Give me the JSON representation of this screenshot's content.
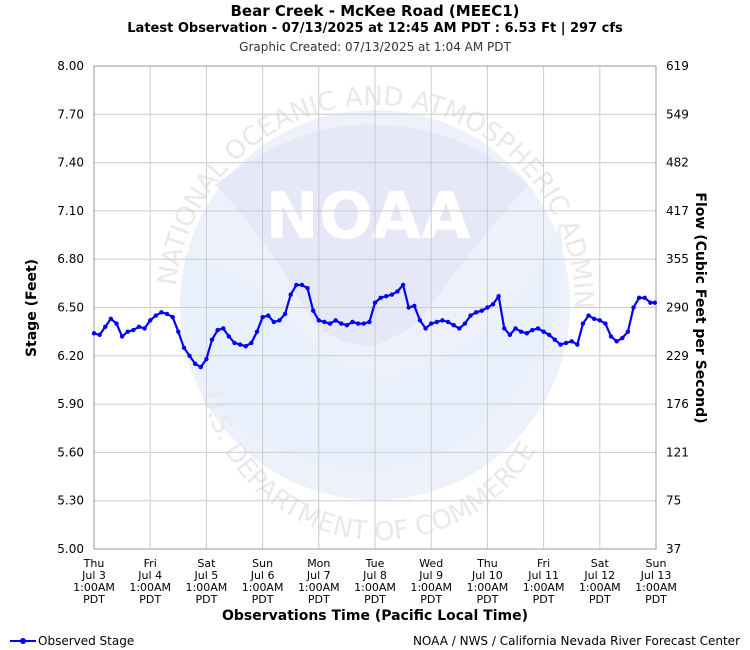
{
  "header": {
    "title": "Bear Creek - McKee Road (MEEC1)",
    "subtitle": "Latest Observation - 07/13/2025 at 12:45 AM PDT : 6.53 Ft | 297 cfs",
    "created": "Graphic Created: 07/13/2025 at 1:04 AM PDT"
  },
  "footer": {
    "legend_label": "Observed Stage",
    "credit": "NOAA / NWS / California Nevada River Forecast Center"
  },
  "watermark": {
    "logo_text": "NOAA",
    "seal_text": "NATIONAL OCEANIC AND ATMOSPHERIC ADMINISTRATION",
    "seal_text_bottom": "U.S. DEPARTMENT OF COMMERCE"
  },
  "colors": {
    "series": "#0000ff",
    "grid": "#cccccc",
    "watermark": "#e8ecf8"
  },
  "chart_data": {
    "type": "line",
    "xlabel": "Observations Time (Pacific Local Time)",
    "ylabel": "Stage (Feet)",
    "y2label": "Flow (Cubic Feet per Second)",
    "ylim": [
      5.0,
      8.0
    ],
    "yticks": [
      "8.00",
      "7.70",
      "7.40",
      "7.10",
      "6.80",
      "6.50",
      "6.20",
      "5.90",
      "5.60",
      "5.30",
      "5.00"
    ],
    "y2ticks": [
      "619",
      "549",
      "482",
      "417",
      "355",
      "290",
      "229",
      "176",
      "121",
      "75",
      "37"
    ],
    "xlim_days": [
      0,
      10
    ],
    "xticks": [
      {
        "day": "Thu",
        "date": "Jul 3",
        "time": "1:00AM",
        "tz": "PDT"
      },
      {
        "day": "Fri",
        "date": "Jul 4",
        "time": "1:00AM",
        "tz": "PDT"
      },
      {
        "day": "Sat",
        "date": "Jul 5",
        "time": "1:00AM",
        "tz": "PDT"
      },
      {
        "day": "Sun",
        "date": "Jul 6",
        "time": "1:00AM",
        "tz": "PDT"
      },
      {
        "day": "Mon",
        "date": "Jul 7",
        "time": "1:00AM",
        "tz": "PDT"
      },
      {
        "day": "Tue",
        "date": "Jul 8",
        "time": "1:00AM",
        "tz": "PDT"
      },
      {
        "day": "Wed",
        "date": "Jul 9",
        "time": "1:00AM",
        "tz": "PDT"
      },
      {
        "day": "Thu",
        "date": "Jul 10",
        "time": "1:00AM",
        "tz": "PDT"
      },
      {
        "day": "Fri",
        "date": "Jul 11",
        "time": "1:00AM",
        "tz": "PDT"
      },
      {
        "day": "Sat",
        "date": "Jul 12",
        "time": "1:00AM",
        "tz": "PDT"
      },
      {
        "day": "Sun",
        "date": "Jul 13",
        "time": "1:00AM",
        "tz": "PDT"
      }
    ],
    "grid": true,
    "legend": "bottom-left",
    "series": [
      {
        "name": "Observed Stage",
        "points": [
          [
            0.0,
            6.34
          ],
          [
            0.1,
            6.33
          ],
          [
            0.2,
            6.38
          ],
          [
            0.3,
            6.43
          ],
          [
            0.4,
            6.4
          ],
          [
            0.5,
            6.32
          ],
          [
            0.6,
            6.35
          ],
          [
            0.7,
            6.36
          ],
          [
            0.8,
            6.38
          ],
          [
            0.9,
            6.37
          ],
          [
            1.0,
            6.42
          ],
          [
            1.1,
            6.45
          ],
          [
            1.2,
            6.47
          ],
          [
            1.3,
            6.46
          ],
          [
            1.4,
            6.44
          ],
          [
            1.5,
            6.35
          ],
          [
            1.6,
            6.25
          ],
          [
            1.7,
            6.2
          ],
          [
            1.8,
            6.15
          ],
          [
            1.9,
            6.13
          ],
          [
            2.0,
            6.18
          ],
          [
            2.1,
            6.3
          ],
          [
            2.2,
            6.36
          ],
          [
            2.3,
            6.37
          ],
          [
            2.4,
            6.32
          ],
          [
            2.5,
            6.28
          ],
          [
            2.6,
            6.27
          ],
          [
            2.7,
            6.26
          ],
          [
            2.8,
            6.28
          ],
          [
            2.9,
            6.35
          ],
          [
            3.0,
            6.44
          ],
          [
            3.1,
            6.45
          ],
          [
            3.2,
            6.41
          ],
          [
            3.3,
            6.42
          ],
          [
            3.4,
            6.46
          ],
          [
            3.5,
            6.58
          ],
          [
            3.6,
            6.64
          ],
          [
            3.7,
            6.64
          ],
          [
            3.8,
            6.62
          ],
          [
            3.9,
            6.48
          ],
          [
            4.0,
            6.42
          ],
          [
            4.1,
            6.41
          ],
          [
            4.2,
            6.4
          ],
          [
            4.3,
            6.42
          ],
          [
            4.4,
            6.4
          ],
          [
            4.5,
            6.39
          ],
          [
            4.6,
            6.41
          ],
          [
            4.7,
            6.4
          ],
          [
            4.8,
            6.4
          ],
          [
            4.9,
            6.41
          ],
          [
            5.0,
            6.53
          ],
          [
            5.1,
            6.56
          ],
          [
            5.2,
            6.57
          ],
          [
            5.3,
            6.58
          ],
          [
            5.4,
            6.6
          ],
          [
            5.5,
            6.64
          ],
          [
            5.6,
            6.5
          ],
          [
            5.7,
            6.51
          ],
          [
            5.8,
            6.42
          ],
          [
            5.9,
            6.37
          ],
          [
            6.0,
            6.4
          ],
          [
            6.1,
            6.41
          ],
          [
            6.2,
            6.42
          ],
          [
            6.3,
            6.41
          ],
          [
            6.4,
            6.39
          ],
          [
            6.5,
            6.37
          ],
          [
            6.6,
            6.4
          ],
          [
            6.7,
            6.45
          ],
          [
            6.8,
            6.47
          ],
          [
            6.9,
            6.48
          ],
          [
            7.0,
            6.5
          ],
          [
            7.1,
            6.52
          ],
          [
            7.2,
            6.57
          ],
          [
            7.3,
            6.37
          ],
          [
            7.4,
            6.33
          ],
          [
            7.5,
            6.37
          ],
          [
            7.6,
            6.35
          ],
          [
            7.7,
            6.34
          ],
          [
            7.8,
            6.36
          ],
          [
            7.9,
            6.37
          ],
          [
            8.0,
            6.35
          ],
          [
            8.1,
            6.33
          ],
          [
            8.2,
            6.3
          ],
          [
            8.3,
            6.27
          ],
          [
            8.4,
            6.28
          ],
          [
            8.5,
            6.29
          ],
          [
            8.6,
            6.27
          ],
          [
            8.7,
            6.4
          ],
          [
            8.8,
            6.45
          ],
          [
            8.9,
            6.43
          ],
          [
            9.0,
            6.42
          ],
          [
            9.1,
            6.4
          ],
          [
            9.2,
            6.32
          ],
          [
            9.3,
            6.29
          ],
          [
            9.4,
            6.31
          ],
          [
            9.5,
            6.35
          ],
          [
            9.6,
            6.5
          ],
          [
            9.7,
            6.56
          ],
          [
            9.8,
            6.56
          ],
          [
            9.9,
            6.53
          ],
          [
            9.98,
            6.53
          ]
        ]
      }
    ]
  }
}
